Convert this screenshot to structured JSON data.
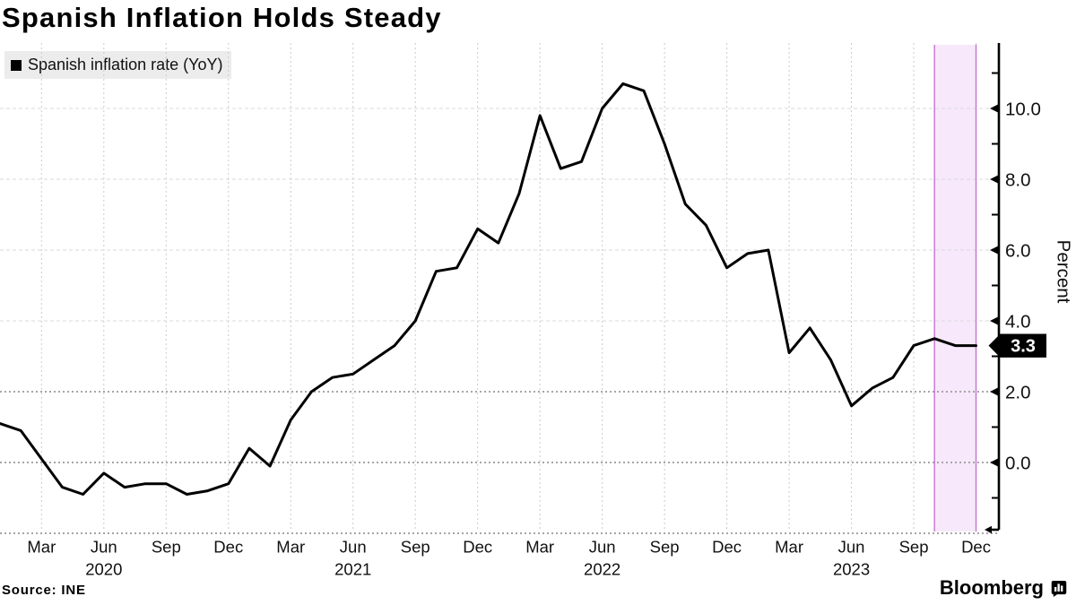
{
  "header": {
    "title": "Spanish Inflation Holds Steady"
  },
  "legend": {
    "label": "Spanish inflation rate (YoY)",
    "swatch_color": "#000000",
    "background": "#ececec"
  },
  "footer": {
    "source": "Source: INE",
    "brand": "Bloomberg"
  },
  "y_axis": {
    "title": "Percent",
    "last_value_badge": {
      "label": "3.3",
      "value": 3.3,
      "background": "#000000",
      "text_color": "#ffffff"
    }
  },
  "chart_data": {
    "type": "line",
    "title": "Spanish Inflation Holds Steady",
    "ylabel": "Percent",
    "xlabel": "",
    "x_start": "2020-01",
    "frequency": "monthly",
    "series": [
      {
        "name": "Spanish inflation rate (YoY)",
        "color": "#000000",
        "values": [
          1.1,
          0.9,
          0.1,
          -0.7,
          -0.9,
          -0.3,
          -0.7,
          -0.6,
          -0.6,
          -0.9,
          -0.8,
          -0.6,
          0.4,
          -0.1,
          1.2,
          2.0,
          2.4,
          2.5,
          2.9,
          3.3,
          4.0,
          5.4,
          5.5,
          6.6,
          6.2,
          7.6,
          9.8,
          8.3,
          8.5,
          10.0,
          10.7,
          10.5,
          9.0,
          7.3,
          6.7,
          5.5,
          5.9,
          6.0,
          3.1,
          3.8,
          2.9,
          1.6,
          2.1,
          2.4,
          3.3,
          3.5,
          3.3,
          3.3
        ]
      }
    ],
    "x_tick_labels": [
      {
        "i": 2,
        "label": "Mar"
      },
      {
        "i": 5,
        "label": "Jun"
      },
      {
        "i": 8,
        "label": "Sep"
      },
      {
        "i": 11,
        "label": "Dec"
      },
      {
        "i": 14,
        "label": "Mar"
      },
      {
        "i": 17,
        "label": "Jun"
      },
      {
        "i": 20,
        "label": "Sep"
      },
      {
        "i": 23,
        "label": "Dec"
      },
      {
        "i": 26,
        "label": "Mar"
      },
      {
        "i": 29,
        "label": "Jun"
      },
      {
        "i": 32,
        "label": "Sep"
      },
      {
        "i": 35,
        "label": "Dec"
      },
      {
        "i": 38,
        "label": "Mar"
      },
      {
        "i": 41,
        "label": "Jun"
      },
      {
        "i": 44,
        "label": "Sep"
      },
      {
        "i": 47,
        "label": "Dec"
      }
    ],
    "year_labels": [
      {
        "i": 5,
        "label": "2020"
      },
      {
        "i": 17,
        "label": "2021"
      },
      {
        "i": 29,
        "label": "2022"
      },
      {
        "i": 41,
        "label": "2023"
      }
    ],
    "y_ticks": [
      {
        "value": 0,
        "label": "0.0"
      },
      {
        "value": 2,
        "label": "2.0"
      },
      {
        "value": 4,
        "label": "4.0"
      },
      {
        "value": 6,
        "label": "6.0"
      },
      {
        "value": 8,
        "label": "8.0"
      },
      {
        "value": 10,
        "label": "10.0"
      }
    ],
    "y_minor_ticks": [
      -1,
      1,
      3,
      5,
      7,
      9,
      11
    ],
    "light_gridline_values": [
      4,
      6,
      8,
      10
    ],
    "emphasized_gridline_values": [
      -2,
      0,
      2
    ],
    "ylim": [
      -2,
      11.8
    ],
    "grid": true,
    "legend_position": "top-left",
    "last_value_label": "3.3",
    "highlight_band": {
      "from": "2023-10",
      "to": "2023-12",
      "fill": "#f7e8fb",
      "border": "#c671d2"
    },
    "colors": {
      "line": "#000000",
      "grid_light": "#dadada",
      "grid_dark": "#a6a6a6",
      "grid_vertical": "#cacaca",
      "axis": "#000000"
    }
  }
}
